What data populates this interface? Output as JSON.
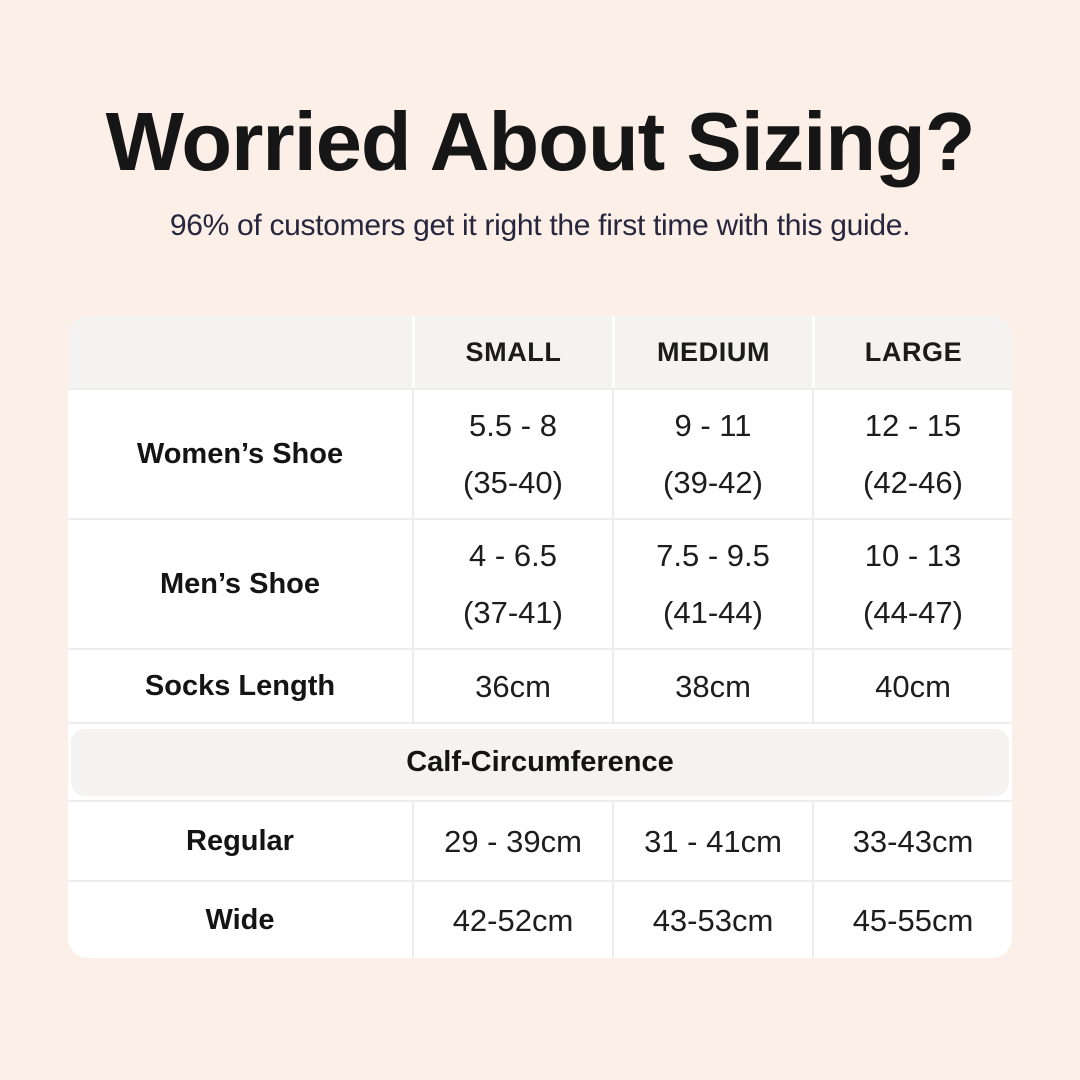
{
  "page": {
    "background_color": "#fcefe7",
    "card_color": "#ffffff",
    "header_band_color": "#f4f3f1",
    "title_color": "#161616",
    "subtitle_color": "#26263e"
  },
  "header": {
    "title": "Worried About Sizing?",
    "subtitle": "96% of customers get it right the first time with this guide."
  },
  "table": {
    "columns": [
      "",
      "SMALL",
      "MEDIUM",
      "LARGE"
    ],
    "rows": [
      {
        "label": "Women’s Shoe",
        "values": [
          [
            "5.5 - 8",
            "(35-40)"
          ],
          [
            "9 - 11",
            "(39-42)"
          ],
          [
            "12 - 15",
            "(42-46)"
          ]
        ]
      },
      {
        "label": "Men’s Shoe",
        "values": [
          [
            "4 - 6.5",
            "(37-41)"
          ],
          [
            "7.5 - 9.5",
            "(41-44)"
          ],
          [
            "10 - 13",
            "(44-47)"
          ]
        ]
      },
      {
        "label": "Socks Length",
        "values": [
          [
            "36cm"
          ],
          [
            "38cm"
          ],
          [
            "40cm"
          ]
        ]
      }
    ],
    "section_label": "Calf-Circumference",
    "section_rows": [
      {
        "label": "Regular",
        "values": [
          [
            "29 - 39cm"
          ],
          [
            "31 - 41cm"
          ],
          [
            "33-43cm"
          ]
        ]
      },
      {
        "label": "Wide",
        "values": [
          [
            "42-52cm"
          ],
          [
            "43-53cm"
          ],
          [
            "45-55cm"
          ]
        ]
      }
    ]
  },
  "chart_data": {
    "type": "table",
    "title": "Worried About Sizing?",
    "subtitle": "96% of customers get it right the first time with this guide.",
    "columns": [
      "",
      "SMALL",
      "MEDIUM",
      "LARGE"
    ],
    "rows": [
      [
        "Women’s Shoe",
        "5.5 - 8 (35-40)",
        "9 - 11 (39-42)",
        "12 - 15 (42-46)"
      ],
      [
        "Men’s Shoe",
        "4 - 6.5 (37-41)",
        "7.5 - 9.5 (41-44)",
        "10 - 13 (44-47)"
      ],
      [
        "Socks Length",
        "36cm",
        "38cm",
        "40cm"
      ],
      [
        "Calf-Circumference",
        "",
        "",
        ""
      ],
      [
        "Regular",
        "29 - 39cm",
        "31 - 41cm",
        "33-43cm"
      ],
      [
        "Wide",
        "42-52cm",
        "43-53cm",
        "45-55cm"
      ]
    ]
  }
}
